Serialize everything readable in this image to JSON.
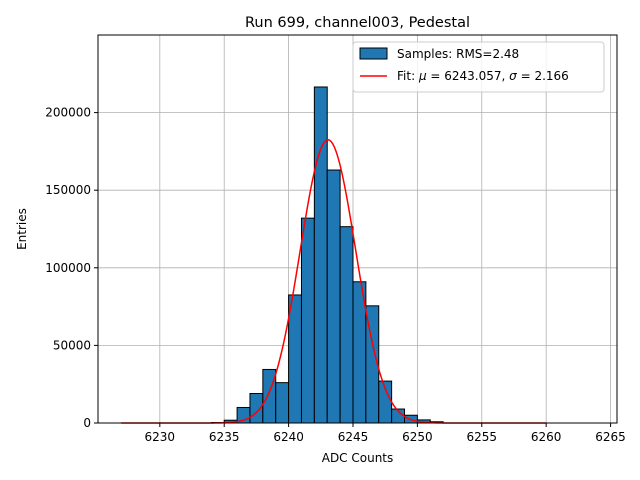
{
  "chart_data": {
    "type": "bar",
    "title": "Run 699, channel003, Pedestal",
    "xlabel": "ADC Counts",
    "ylabel": "Entries",
    "xlim": [
      6225.2,
      6265.5
    ],
    "ylim": [
      0,
      250000
    ],
    "xticks": [
      6230,
      6235,
      6240,
      6245,
      6250,
      6255,
      6260,
      6265
    ],
    "yticks": [
      0,
      50000,
      100000,
      150000,
      200000
    ],
    "grid": true,
    "legend_position": "top-right",
    "histogram": {
      "name": "Samples: RMS=2.48",
      "bin_width": 1,
      "bin_start": [
        6234,
        6235,
        6236,
        6237,
        6238,
        6239,
        6240,
        6241,
        6242,
        6243,
        6244,
        6245,
        6246,
        6247,
        6248,
        6249,
        6250,
        6251
      ],
      "values": [
        300,
        1800,
        10000,
        19000,
        34500,
        26000,
        82500,
        132000,
        216500,
        163000,
        126500,
        91000,
        75500,
        27000,
        9000,
        5000,
        2000,
        800
      ],
      "color": "#1f77b4"
    },
    "fit": {
      "name_prefix": "Fit: ",
      "name_mu": "μ",
      "name_eq1": " = 6243.057, ",
      "name_sigma": "σ",
      "name_eq2": " = 2.166",
      "mu": 6243.057,
      "sigma": 2.166,
      "amplitude": 182500,
      "x_range": [
        6227,
        6260
      ],
      "color": "#ff0000"
    }
  }
}
